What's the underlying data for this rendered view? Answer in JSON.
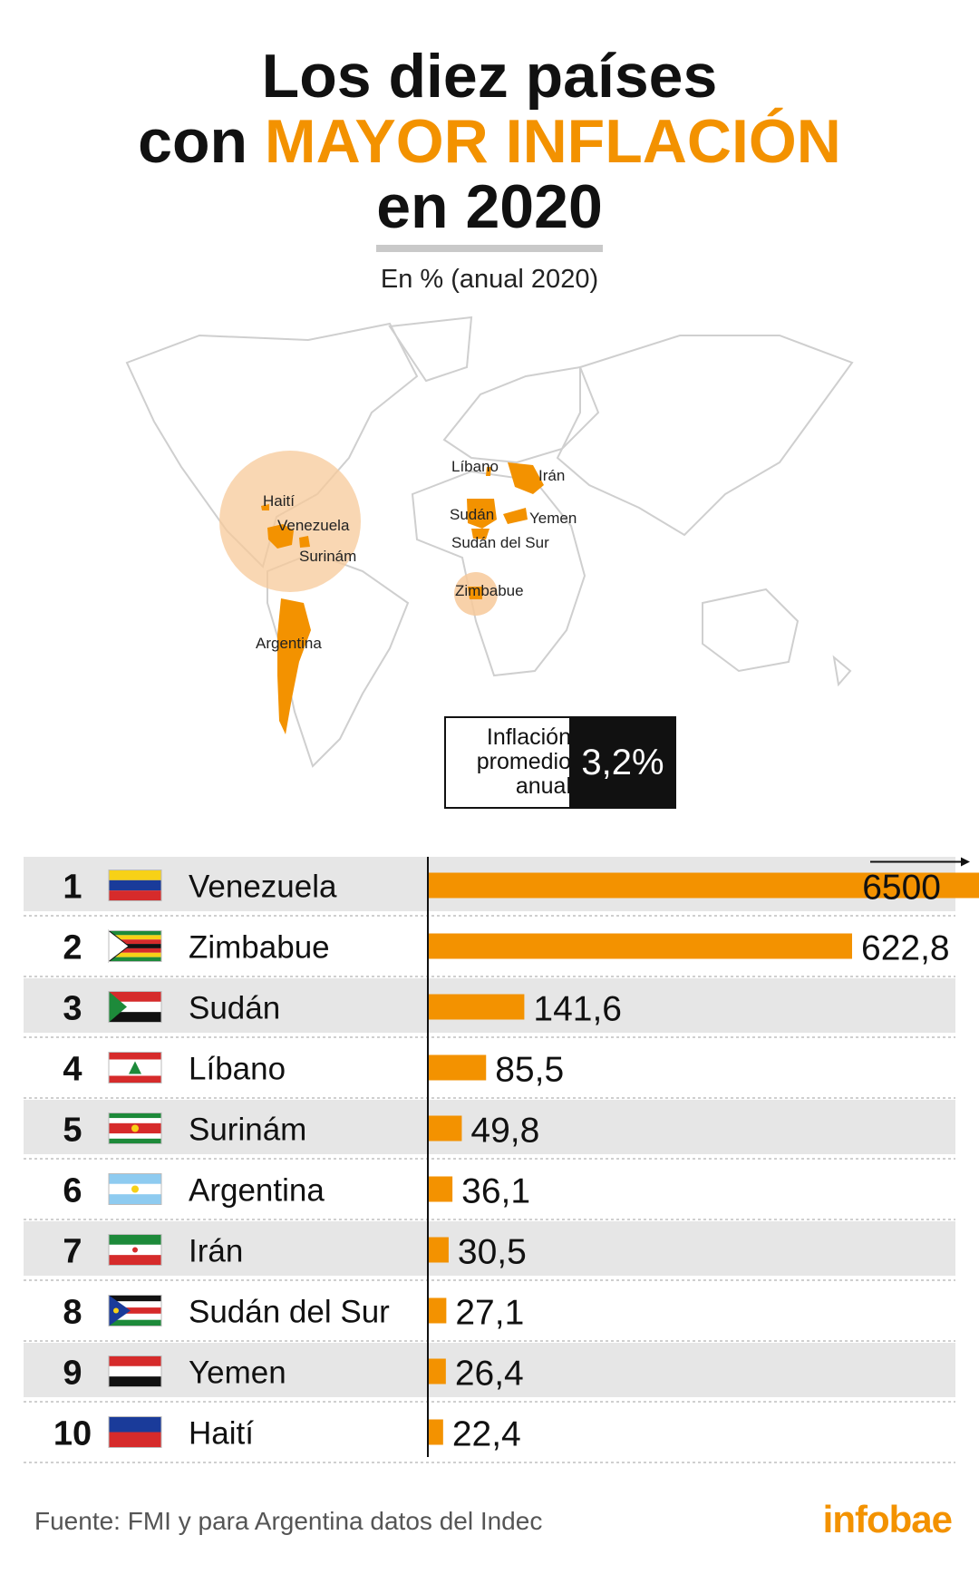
{
  "title": {
    "line1": "Los diez países",
    "line2_prefix": "con ",
    "line2_highlight": "MAYOR INFLACIÓN",
    "line3": "en 2020",
    "highlight_color": "#f39200"
  },
  "subtitle": "En % (anual 2020)",
  "map": {
    "labels": [
      "Líbano",
      "Irán",
      "Haití",
      "Venezuela",
      "Surinám",
      "Sudán",
      "Yemen",
      "Sudán del Sur",
      "Zimbabue",
      "Argentina"
    ],
    "highlight_color": "#f39200",
    "bubble_color": "#f7c99a"
  },
  "average_box": {
    "label": "Inflación\npromedio\nanual",
    "value": "3,2%"
  },
  "chart_data": {
    "type": "bar",
    "orientation": "horizontal",
    "categories": [
      "Venezuela",
      "Zimbabue",
      "Sudán",
      "Líbano",
      "Surinám",
      "Argentina",
      "Irán",
      "Sudán del Sur",
      "Yemen",
      "Haití"
    ],
    "ranks": [
      "1",
      "2",
      "3",
      "4",
      "5",
      "6",
      "7",
      "8",
      "9",
      "10"
    ],
    "values": [
      6500,
      622.8,
      141.6,
      85.5,
      49.8,
      36.1,
      30.5,
      27.1,
      26.4,
      22.4
    ],
    "value_labels": [
      "6500",
      "622,8",
      "141,6",
      "85,5",
      "49,8",
      "36,1",
      "30,5",
      "27,1",
      "26,4",
      "22,4"
    ],
    "axis_break_at": 622.8,
    "bar_color": "#f39200",
    "row_alt_color": "#e6e6e6"
  },
  "source": "Fuente: FMI y para Argentina datos del Indec",
  "logo": "infobae"
}
